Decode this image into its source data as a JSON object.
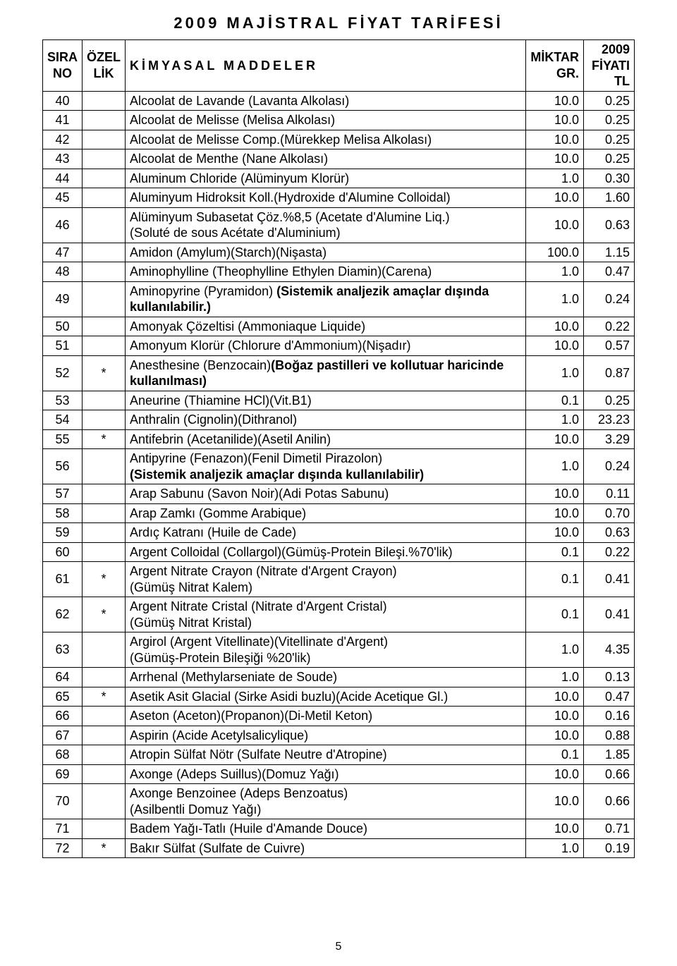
{
  "title": "2009 MAJİSTRAL FİYAT TARİFESİ",
  "page_number": "5",
  "header": {
    "col1a": "SIRA",
    "col1b": "NO",
    "col2a": "ÖZEL",
    "col2b": "LİK",
    "col3": "KİMYASAL MADDELER",
    "col4a": "MİKTAR",
    "col4b": "GR.",
    "col5a": "2009",
    "col5b": "FİYATI",
    "col5c": "TL"
  },
  "rows": [
    {
      "no": "40",
      "spec": "",
      "desc": "Alcoolat de Lavande (Lavanta Alkolası)",
      "qty": "10.0",
      "price": "0.25"
    },
    {
      "no": "41",
      "spec": "",
      "desc": "Alcoolat de Melisse (Melisa Alkolası)",
      "qty": "10.0",
      "price": "0.25"
    },
    {
      "no": "42",
      "spec": "",
      "desc": "Alcoolat de Melisse Comp.(Mürekkep Melisa Alkolası)",
      "qty": "10.0",
      "price": "0.25"
    },
    {
      "no": "43",
      "spec": "",
      "desc": "Alcoolat de Menthe (Nane Alkolası)",
      "qty": "10.0",
      "price": "0.25"
    },
    {
      "no": "44",
      "spec": "",
      "desc": "Aluminum Chloride (Alüminyum Klorür)",
      "qty": "1.0",
      "price": "0.30"
    },
    {
      "no": "45",
      "spec": "",
      "desc": "Aluminyum Hidroksit Koll.(Hydroxide d'Alumine Colloidal)",
      "qty": "10.0",
      "price": "1.60"
    },
    {
      "no": "46",
      "spec": "",
      "desc": "Alüminyum Subasetat Çöz.%8,5 (Acetate d'Alumine Liq.)\n(Soluté de sous Acétate d'Aluminium)",
      "qty": "10.0",
      "price": "0.63"
    },
    {
      "no": "47",
      "spec": "",
      "desc": "Amidon (Amylum)(Starch)(Nişasta)",
      "qty": "100.0",
      "price": "1.15"
    },
    {
      "no": "48",
      "spec": "",
      "desc": "Aminophylline (Theophylline Ethylen Diamin)(Carena)",
      "qty": "1.0",
      "price": "0.47"
    },
    {
      "no": "49",
      "spec": "",
      "descHtml": "Aminopyrine (Pyramidon) <b>(Sistemik analjezik amaçlar dışında kullanılabilir.)</b>",
      "qty": "1.0",
      "price": "0.24"
    },
    {
      "no": "50",
      "spec": "",
      "desc": "Amonyak Çözeltisi (Ammoniaque Liquide)",
      "qty": "10.0",
      "price": "0.22"
    },
    {
      "no": "51",
      "spec": "",
      "desc": "Amonyum Klorür (Chlorure d'Ammonium)(Nişadır)",
      "qty": "10.0",
      "price": "0.57"
    },
    {
      "no": "52",
      "spec": "*",
      "descHtml": "Anesthesine (Benzocain)<b>(Boğaz pastilleri ve kollutuar haricinde kullanılması)</b>",
      "qty": "1.0",
      "price": "0.87"
    },
    {
      "no": "53",
      "spec": "",
      "desc": "Aneurine (Thiamine HCl)(Vit.B1)",
      "qty": "0.1",
      "price": "0.25"
    },
    {
      "no": "54",
      "spec": "",
      "desc": "Anthralin (Cignolin)(Dithranol)",
      "qty": "1.0",
      "price": "23.23"
    },
    {
      "no": "55",
      "spec": "*",
      "desc": "Antifebrin (Acetanilide)(Asetil Anilin)",
      "qty": "10.0",
      "price": "3.29"
    },
    {
      "no": "56",
      "spec": "",
      "descHtml": "Antipyrine (Fenazon)(Fenil Dimetil Pirazolon)<br><b>(Sistemik analjezik amaçlar dışında kullanılabilir)</b>",
      "qty": "1.0",
      "price": "0.24"
    },
    {
      "no": "57",
      "spec": "",
      "desc": "Arap Sabunu (Savon Noir)(Adi Potas Sabunu)",
      "qty": "10.0",
      "price": "0.11"
    },
    {
      "no": "58",
      "spec": "",
      "desc": "Arap Zamkı (Gomme Arabique)",
      "qty": "10.0",
      "price": "0.70"
    },
    {
      "no": "59",
      "spec": "",
      "desc": "Ardıç Katranı (Huile de Cade)",
      "qty": "10.0",
      "price": "0.63"
    },
    {
      "no": "60",
      "spec": "",
      "desc": "Argent Colloidal (Collargol)(Gümüş-Protein Bileşi.%70'lik)",
      "qty": "0.1",
      "price": "0.22"
    },
    {
      "no": "61",
      "spec": "*",
      "desc": "Argent Nitrate Crayon (Nitrate d'Argent Crayon)\n(Gümüş Nitrat Kalem)",
      "qty": "0.1",
      "price": "0.41"
    },
    {
      "no": "62",
      "spec": "*",
      "desc": "Argent Nitrate Cristal (Nitrate d'Argent Cristal)\n(Gümüş Nitrat Kristal)",
      "qty": "0.1",
      "price": "0.41"
    },
    {
      "no": "63",
      "spec": "",
      "desc": "Argirol (Argent Vitellinate)(Vitellinate d'Argent)\n(Gümüş-Protein Bileşiği %20'lik)",
      "qty": "1.0",
      "price": "4.35"
    },
    {
      "no": "64",
      "spec": "",
      "desc": "Arrhenal (Methylarseniate de Soude)",
      "qty": "1.0",
      "price": "0.13"
    },
    {
      "no": "65",
      "spec": "*",
      "desc": "Asetik Asit Glacial (Sirke Asidi buzlu)(Acide Acetique Gl.)",
      "qty": "10.0",
      "price": "0.47"
    },
    {
      "no": "66",
      "spec": "",
      "desc": "Aseton (Aceton)(Propanon)(Di-Metil Keton)",
      "qty": "10.0",
      "price": "0.16"
    },
    {
      "no": "67",
      "spec": "",
      "desc": "Aspirin (Acide Acetylsalicylique)",
      "qty": "10.0",
      "price": "0.88"
    },
    {
      "no": "68",
      "spec": "",
      "desc": "Atropin Sülfat Nötr (Sulfate Neutre d'Atropine)",
      "qty": "0.1",
      "price": "1.85"
    },
    {
      "no": "69",
      "spec": "",
      "desc": "Axonge (Adeps Suillus)(Domuz Yağı)",
      "qty": "10.0",
      "price": "0.66"
    },
    {
      "no": "70",
      "spec": "",
      "desc": "Axonge Benzoinee (Adeps Benzoatus)\n(Asilbentli Domuz Yağı)",
      "qty": "10.0",
      "price": "0.66"
    },
    {
      "no": "71",
      "spec": "",
      "desc": "Badem Yağı-Tatlı (Huile d'Amande Douce)",
      "qty": "10.0",
      "price": "0.71"
    },
    {
      "no": "72",
      "spec": "*",
      "desc": "Bakır Sülfat (Sulfate de Cuivre)",
      "qty": "1.0",
      "price": "0.19"
    }
  ]
}
